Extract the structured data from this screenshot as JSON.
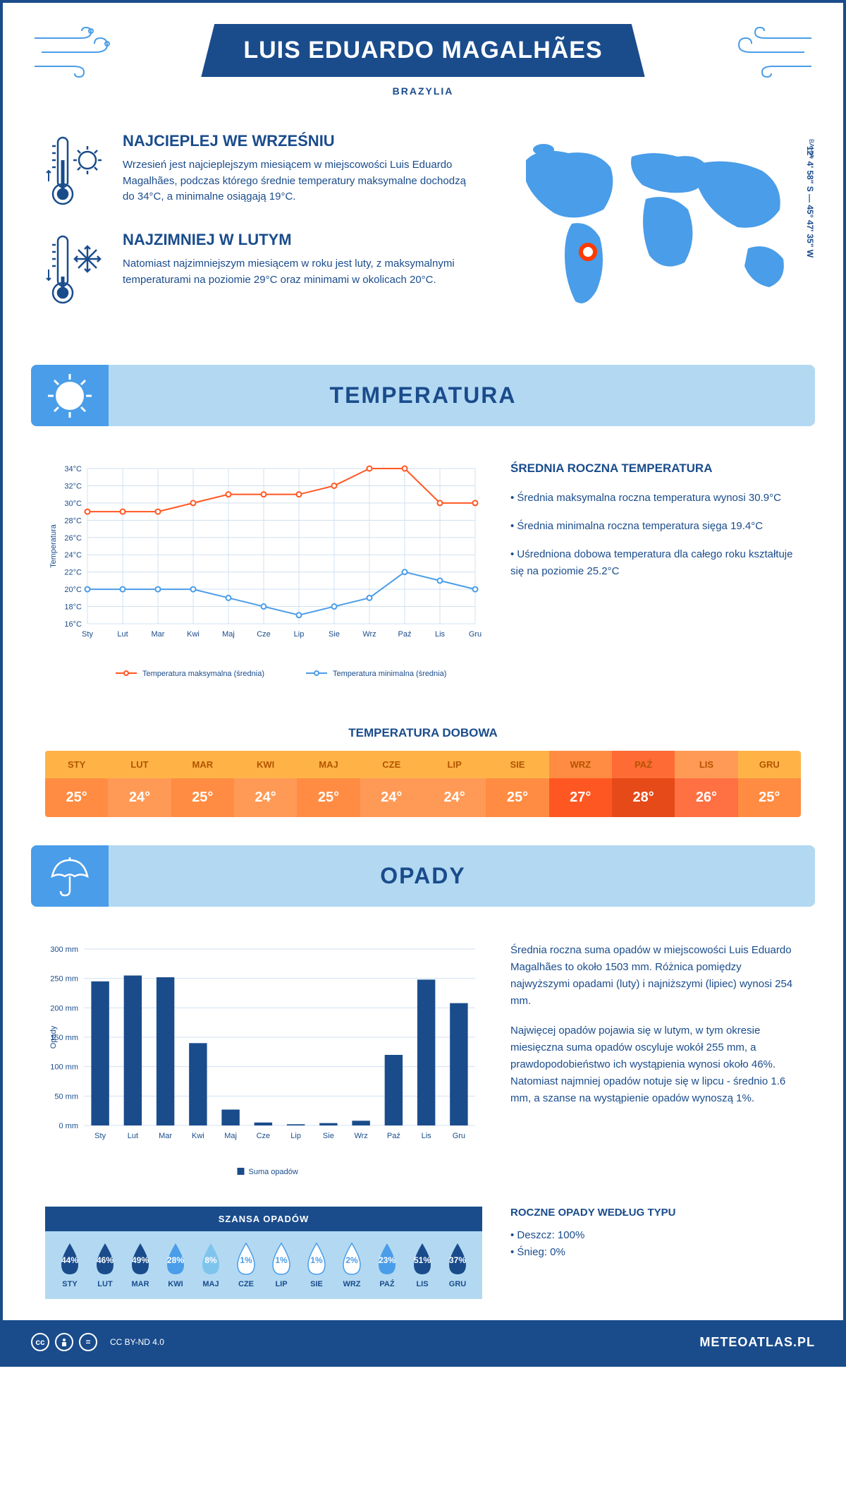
{
  "header": {
    "title": "LUIS EDUARDO MAGALHÃES",
    "subtitle": "BRAZYLIA"
  },
  "intro": {
    "hot": {
      "heading": "NAJCIEPLEJ WE WRZEŚNIU",
      "text": "Wrzesień jest najcieplejszym miesiącem w miejscowości Luis Eduardo Magalhães, podczas którego średnie temperatury maksymalne dochodzą do 34°C, a minimalne osiągają 19°C."
    },
    "cold": {
      "heading": "NAJZIMNIEJ W LUTYM",
      "text": "Natomiast najzimniejszym miesiącem w roku jest luty, z maksymalnymi temperaturami na poziomie 29°C oraz minimami w okolicach 20°C."
    },
    "coords": "12° 4' 58\" S — 45° 47' 35\" W",
    "region": "BAHIA"
  },
  "sections": {
    "temperature": "TEMPERATURA",
    "precipitation": "OPADY"
  },
  "temp_chart": {
    "type": "line",
    "ylabel": "Temperatura",
    "months": [
      "Sty",
      "Lut",
      "Mar",
      "Kwi",
      "Maj",
      "Cze",
      "Lip",
      "Sie",
      "Wrz",
      "Paź",
      "Lis",
      "Gru"
    ],
    "ylim": [
      16,
      34
    ],
    "ytick_step": 2,
    "max_series": {
      "label": "Temperatura maksymalna (średnia)",
      "color": "#ff5722",
      "values": [
        29,
        29,
        29,
        30,
        31,
        31,
        31,
        32,
        34,
        34,
        30,
        30
      ]
    },
    "min_series": {
      "label": "Temperatura minimalna (średnia)",
      "color": "#4a9de8",
      "values": [
        20,
        20,
        20,
        20,
        19,
        18,
        17,
        18,
        19,
        22,
        21,
        20
      ]
    },
    "grid_color": "#d0e0f0",
    "label_fontsize": 11
  },
  "temp_info": {
    "heading": "ŚREDNIA ROCZNA TEMPERATURA",
    "b1": "• Średnia maksymalna roczna temperatura wynosi 30.9°C",
    "b2": "• Średnia minimalna roczna temperatura sięga 19.4°C",
    "b3": "• Uśredniona dobowa temperatura dla całego roku kształtuje się na poziomie 25.2°C"
  },
  "daily": {
    "title": "TEMPERATURA DOBOWA",
    "months": [
      "STY",
      "LUT",
      "MAR",
      "KWI",
      "MAJ",
      "CZE",
      "LIP",
      "SIE",
      "WRZ",
      "PAŹ",
      "LIS",
      "GRU"
    ],
    "values": [
      "25°",
      "24°",
      "25°",
      "24°",
      "25°",
      "24°",
      "24°",
      "25°",
      "27°",
      "28°",
      "26°",
      "25°"
    ],
    "head_colors": [
      "#ffb347",
      "#ffb347",
      "#ffb347",
      "#ffb347",
      "#ffb347",
      "#ffb347",
      "#ffb347",
      "#ffb347",
      "#ff8c42",
      "#ff6b35",
      "#ff9a56",
      "#ffb347"
    ],
    "val_colors": [
      "#ff8c42",
      "#ff9a56",
      "#ff8c42",
      "#ff9a56",
      "#ff8c42",
      "#ff9a56",
      "#ff9a56",
      "#ff8c42",
      "#ff5722",
      "#e64a19",
      "#ff7043",
      "#ff8c42"
    ],
    "head_text": "#b35400"
  },
  "precip_chart": {
    "type": "bar",
    "ylabel": "Opady",
    "months": [
      "Sty",
      "Lut",
      "Mar",
      "Kwi",
      "Maj",
      "Cze",
      "Lip",
      "Sie",
      "Wrz",
      "Paź",
      "Lis",
      "Gru"
    ],
    "ylim": [
      0,
      300
    ],
    "ytick_step": 50,
    "values": [
      245,
      255,
      252,
      140,
      27,
      5,
      2,
      4,
      8,
      120,
      248,
      208
    ],
    "bar_color": "#1a4c8c",
    "legend": "Suma opadów",
    "grid_color": "#d0e0f0",
    "label_fontsize": 11
  },
  "precip_info": {
    "p1": "Średnia roczna suma opadów w miejscowości Luis Eduardo Magalhães to około 1503 mm. Różnica pomiędzy najwyższymi opadami (luty) i najniższymi (lipiec) wynosi 254 mm.",
    "p2": "Najwięcej opadów pojawia się w lutym, w tym okresie miesięczna suma opadów oscyluje wokół 255 mm, a prawdopodobieństwo ich wystąpienia wynosi około 46%. Natomiast najmniej opadów notuje się w lipcu - średnio 1.6 mm, a szanse na wystąpienie opadów wynoszą 1%."
  },
  "chance": {
    "title": "SZANSA OPADÓW",
    "months": [
      "STY",
      "LUT",
      "MAR",
      "KWI",
      "MAJ",
      "CZE",
      "LIP",
      "SIE",
      "WRZ",
      "PAŹ",
      "LIS",
      "GRU"
    ],
    "pct": [
      "44%",
      "46%",
      "49%",
      "28%",
      "8%",
      "1%",
      "1%",
      "1%",
      "2%",
      "23%",
      "51%",
      "37%"
    ],
    "fills": [
      "#1a4c8c",
      "#1a4c8c",
      "#1a4c8c",
      "#4a9de8",
      "#7fc4ed",
      "#ffffff",
      "#ffffff",
      "#ffffff",
      "#ffffff",
      "#4a9de8",
      "#1a4c8c",
      "#1a4c8c"
    ],
    "text_colors": [
      "#fff",
      "#fff",
      "#fff",
      "#fff",
      "#fff",
      "#4a9de8",
      "#4a9de8",
      "#4a9de8",
      "#4a9de8",
      "#fff",
      "#fff",
      "#fff"
    ]
  },
  "type_info": {
    "heading": "ROCZNE OPADY WEDŁUG TYPU",
    "rain": "• Deszcz: 100%",
    "snow": "• Śnieg: 0%"
  },
  "footer": {
    "license": "CC BY-ND 4.0",
    "site": "METEOATLAS.PL"
  },
  "colors": {
    "primary": "#1a4c8c",
    "light_blue": "#b3d9f2",
    "med_blue": "#4a9de8",
    "orange": "#ff5722"
  }
}
